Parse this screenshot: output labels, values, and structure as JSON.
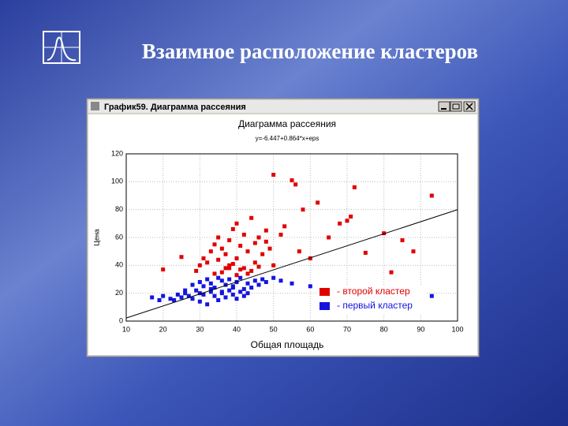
{
  "slide_title": "Взаимное расположение кластеров",
  "window_title": "График59. Диаграмма рассеяния",
  "chart_data": {
    "type": "scatter",
    "title": "Диаграмма рассеяния",
    "subtitle": "y=-6.447+0.864*x+eps",
    "x_label": "Общая площадь",
    "y_label": "Цена",
    "xlim": [
      10,
      100
    ],
    "xticks": [
      10,
      20,
      30,
      40,
      50,
      60,
      70,
      80,
      90,
      100
    ],
    "ylim": [
      0,
      120
    ],
    "yticks": [
      0,
      20,
      40,
      60,
      80,
      100,
      120
    ],
    "grid": true,
    "legend": "lower right",
    "fit": {
      "intercept": -6.447,
      "slope": 0.864
    },
    "series": [
      {
        "name": "- второй кластер",
        "color": "#e00000",
        "x": [
          20,
          25,
          32,
          33,
          34,
          35,
          35,
          36,
          37,
          38,
          38,
          39,
          40,
          40,
          41,
          42,
          42,
          43,
          44,
          45,
          45,
          46,
          47,
          48,
          49,
          50,
          50,
          52,
          53,
          55,
          56,
          57,
          58,
          60,
          62,
          65,
          68,
          70,
          71,
          72,
          75,
          80,
          82,
          85,
          88,
          93,
          36,
          38,
          40,
          44,
          46,
          30,
          29,
          31,
          34,
          37,
          39,
          41,
          43,
          48
        ],
        "values": [
          37,
          46,
          42,
          50,
          55,
          44,
          60,
          52,
          48,
          58,
          40,
          66,
          45,
          70,
          54,
          62,
          38,
          50,
          74,
          56,
          42,
          60,
          48,
          65,
          52,
          40,
          105,
          62,
          68,
          101,
          98,
          50,
          80,
          45,
          85,
          60,
          70,
          72,
          75,
          96,
          49,
          63,
          35,
          58,
          50,
          90,
          35,
          38,
          33,
          36,
          39,
          40,
          36,
          45,
          34,
          38,
          41,
          37,
          34,
          57
        ]
      },
      {
        "name": "- первый кластер",
        "color": "#1414e0",
        "x": [
          17,
          19,
          20,
          22,
          23,
          24,
          25,
          26,
          27,
          28,
          29,
          30,
          30,
          31,
          31,
          32,
          32,
          33,
          33,
          34,
          34,
          35,
          35,
          36,
          36,
          37,
          37,
          38,
          38,
          39,
          39,
          40,
          40,
          41,
          41,
          42,
          42,
          43,
          43,
          44,
          45,
          46,
          47,
          48,
          50,
          52,
          55,
          60,
          93,
          26,
          28,
          30,
          33,
          36,
          39
        ],
        "values": [
          17,
          15,
          18,
          16,
          15,
          19,
          17,
          20,
          18,
          16,
          22,
          14,
          28,
          19,
          25,
          12,
          30,
          21,
          27,
          18,
          24,
          15,
          31,
          20,
          29,
          17,
          26,
          22,
          30,
          19,
          25,
          16,
          28,
          21,
          31,
          23,
          18,
          27,
          20,
          24,
          29,
          26,
          30,
          28,
          31,
          29,
          27,
          25,
          18,
          22,
          26,
          20,
          23,
          21,
          24
        ]
      }
    ]
  }
}
